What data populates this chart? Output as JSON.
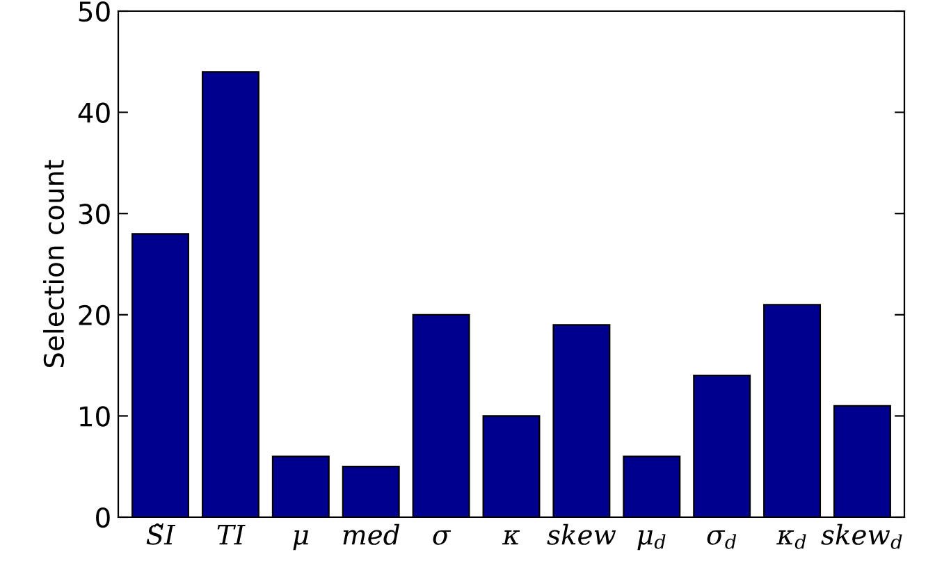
{
  "chart_data": {
    "type": "bar",
    "ylabel": "Selection count",
    "categories": [
      "S̃I",
      "TI",
      "μ",
      "med",
      "σ",
      "κ",
      "skew",
      "μ$_{d}$",
      "σ$_{d}$",
      "κ$_{d}$",
      "skew$_{d}$"
    ],
    "values": [
      28,
      44,
      6,
      5,
      20,
      10,
      19,
      6,
      14,
      21,
      11
    ],
    "color": "#00008f",
    "ylim": [
      0,
      50
    ],
    "yticks": [
      0,
      10,
      20,
      30,
      40,
      50
    ],
    "grid": false
  }
}
